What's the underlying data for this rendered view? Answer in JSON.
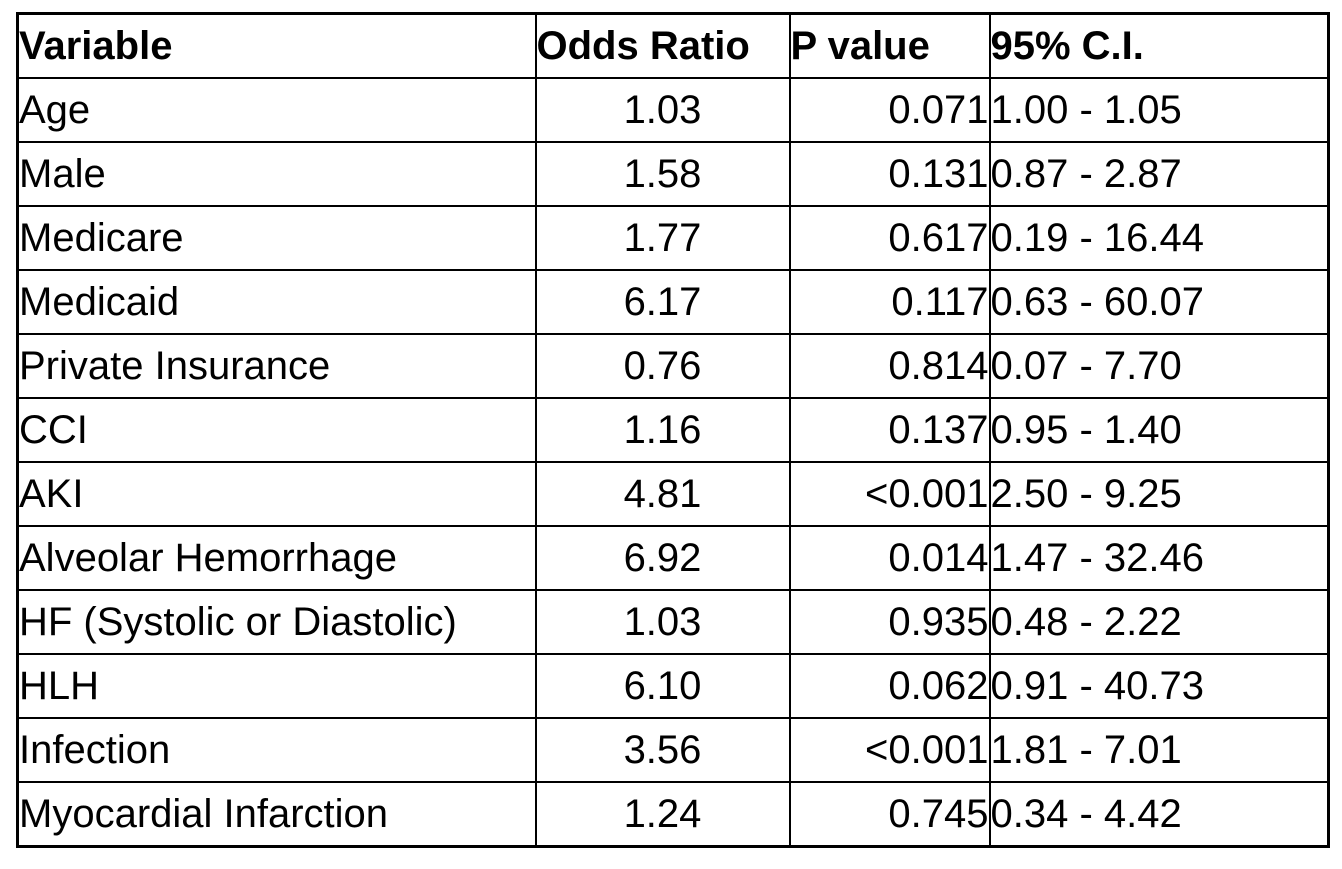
{
  "table": {
    "headers": {
      "variable": "Variable",
      "odds_ratio": "Odds Ratio",
      "p_value": "P value",
      "ci_95": "95% C.I."
    },
    "rows": [
      {
        "variable": "Age",
        "odds_ratio": "1.03",
        "p_value": "0.071",
        "ci_95": "1.00 - 1.05"
      },
      {
        "variable": "Male",
        "odds_ratio": "1.58",
        "p_value": "0.131",
        "ci_95": "0.87 - 2.87"
      },
      {
        "variable": "Medicare",
        "odds_ratio": "1.77",
        "p_value": "0.617",
        "ci_95": "0.19 - 16.44"
      },
      {
        "variable": "Medicaid",
        "odds_ratio": "6.17",
        "p_value": "0.117",
        "ci_95": "0.63 - 60.07"
      },
      {
        "variable": "Private Insurance",
        "odds_ratio": "0.76",
        "p_value": "0.814",
        "ci_95": "0.07 - 7.70"
      },
      {
        "variable": "CCI",
        "odds_ratio": "1.16",
        "p_value": "0.137",
        "ci_95": "0.95 - 1.40"
      },
      {
        "variable": "AKI",
        "odds_ratio": "4.81",
        "p_value": "<0.001",
        "ci_95": "2.50 - 9.25"
      },
      {
        "variable": "Alveolar Hemorrhage",
        "odds_ratio": "6.92",
        "p_value": "0.014",
        "ci_95": "1.47 - 32.46"
      },
      {
        "variable": "HF (Systolic or Diastolic)",
        "odds_ratio": "1.03",
        "p_value": "0.935",
        "ci_95": "0.48 - 2.22"
      },
      {
        "variable": "HLH",
        "odds_ratio": "6.10",
        "p_value": "0.062",
        "ci_95": "0.91 - 40.73"
      },
      {
        "variable": "Infection",
        "odds_ratio": "3.56",
        "p_value": "<0.001",
        "ci_95": "1.81 - 7.01"
      },
      {
        "variable": "Myocardial Infarction",
        "odds_ratio": "1.24",
        "p_value": "0.745",
        "ci_95": "0.34 - 4.42"
      }
    ],
    "colors": {
      "border": "#000000",
      "text": "#000000",
      "background": "#ffffff"
    }
  }
}
